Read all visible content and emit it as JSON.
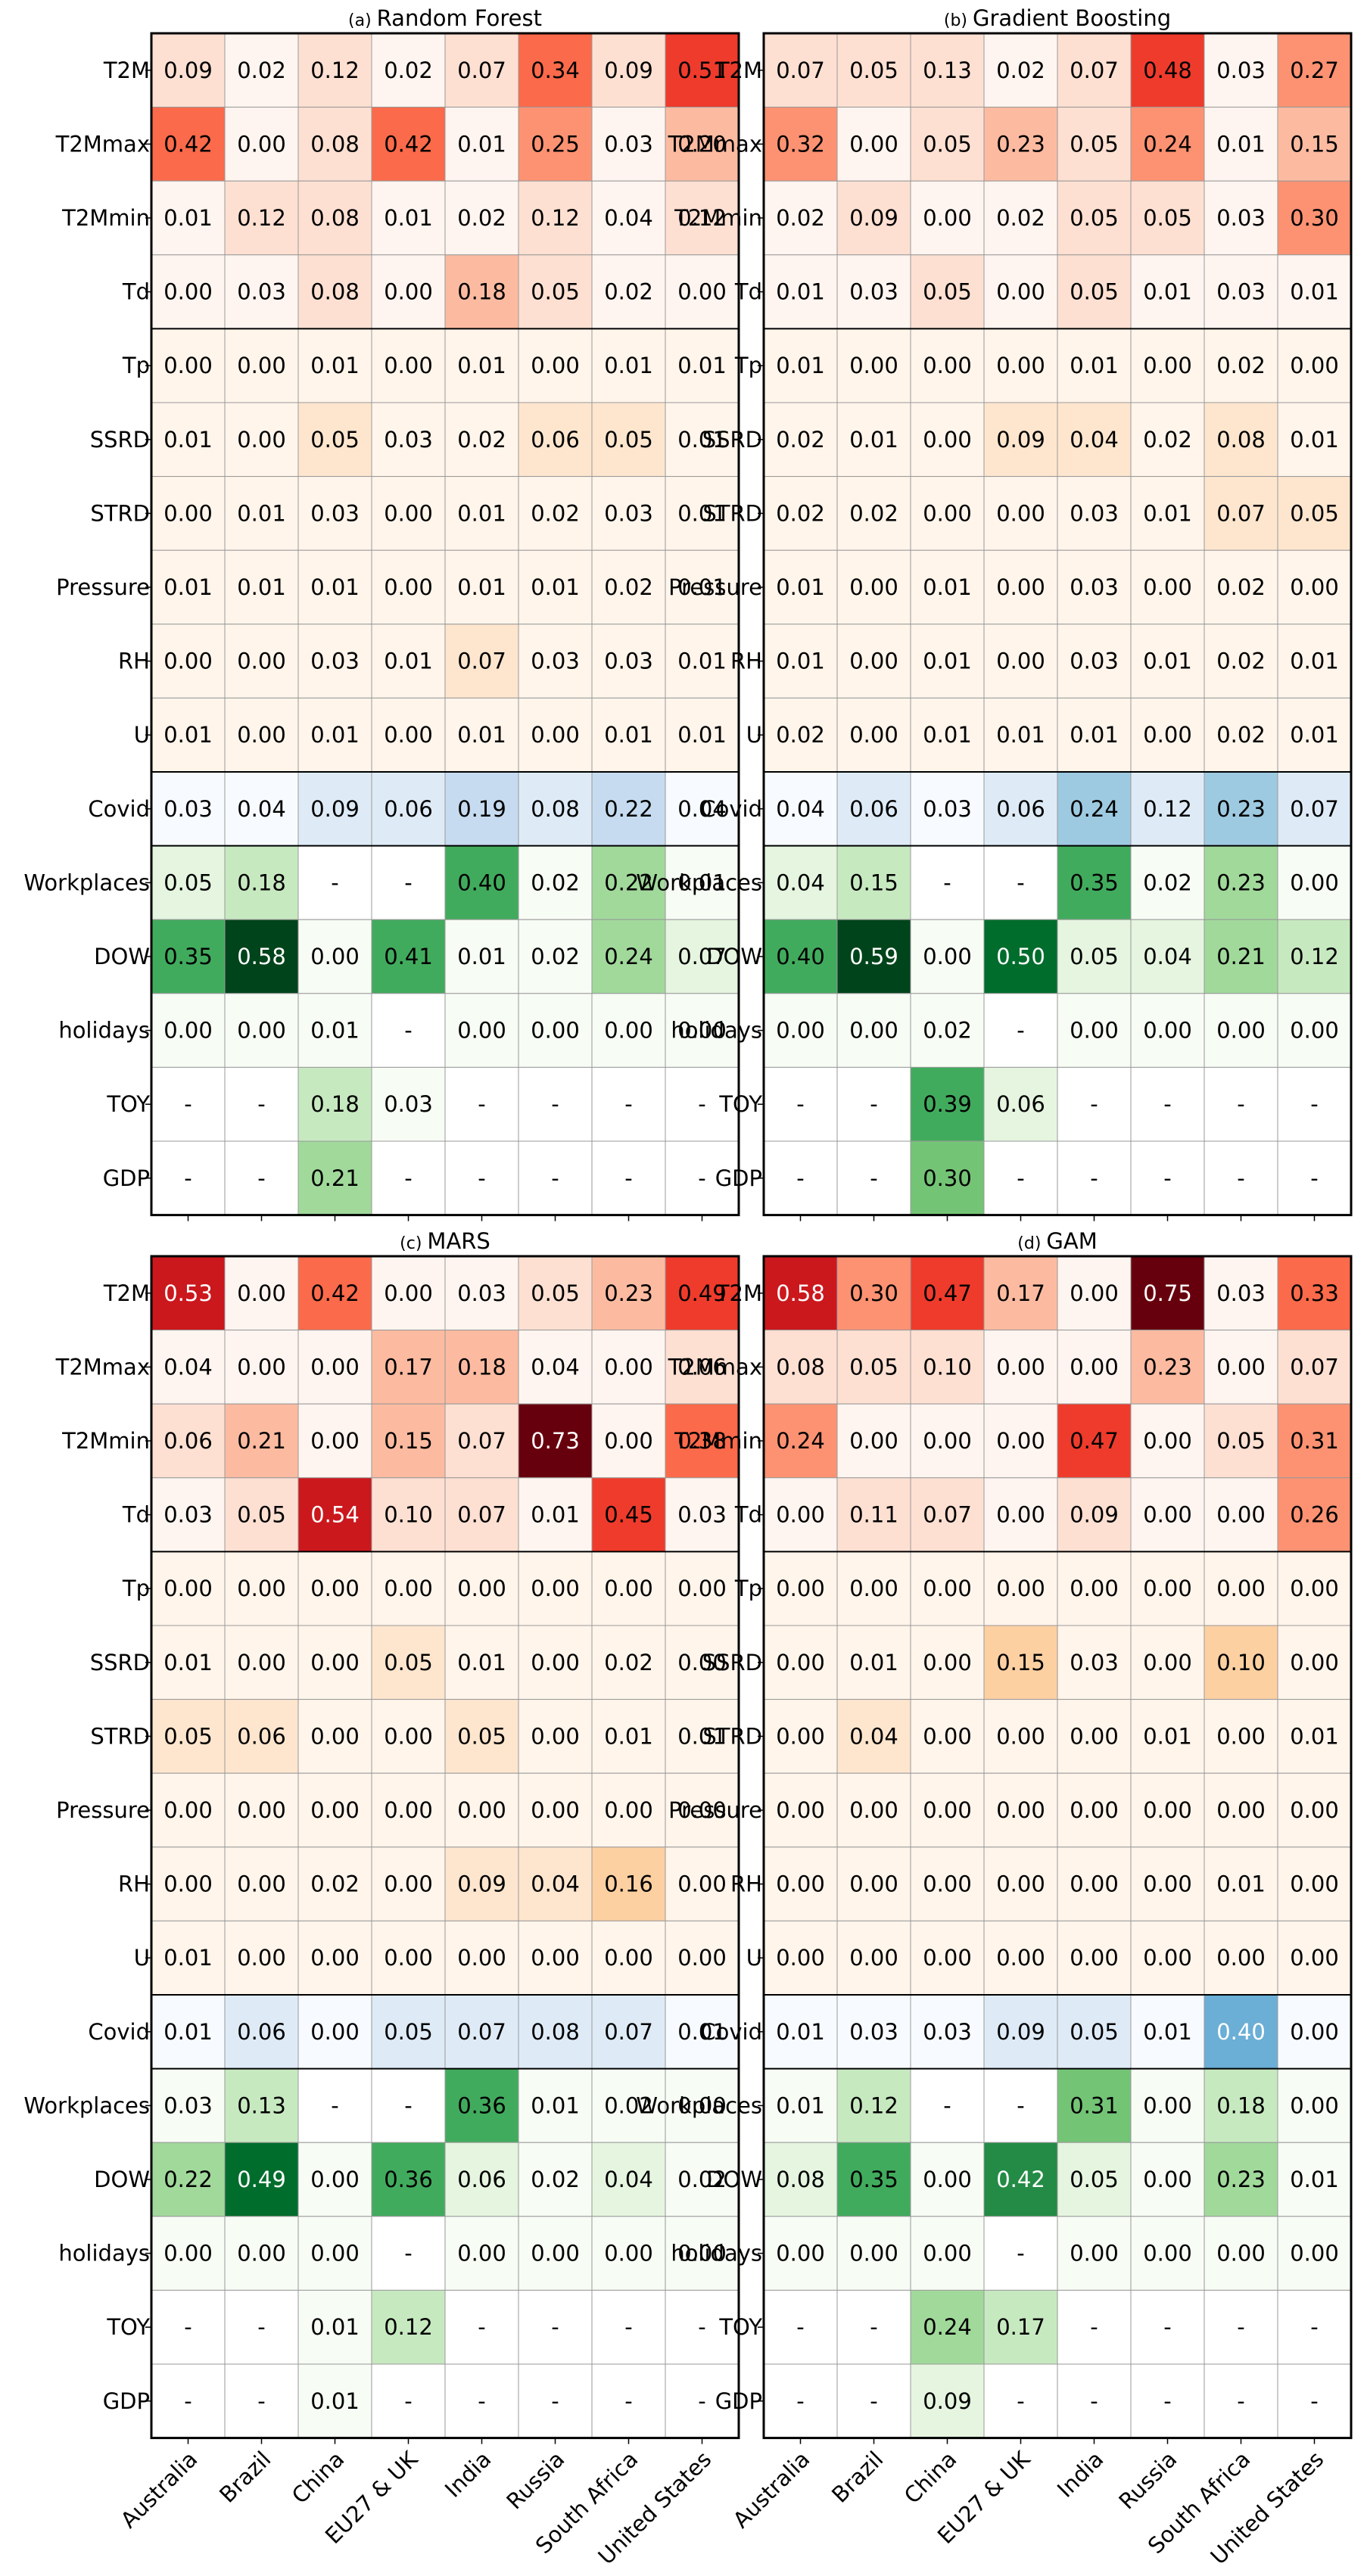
{
  "chart_data": [
    {
      "type": "heatmap",
      "panel_label": "(a)",
      "title": "Random Forest",
      "rows": [
        "T2M",
        "T2Mmax",
        "T2Mmin",
        "Td",
        "Tp",
        "SSRD",
        "STRD",
        "Pressure",
        "RH",
        "U",
        "Covid",
        "Workplaces",
        "DOW",
        "holidays",
        "TOY",
        "GDP"
      ],
      "columns": [
        "Australia",
        "Brazil",
        "China",
        "EU27 & UK",
        "India",
        "Russia",
        "South Africa",
        "United States"
      ],
      "values": [
        [
          "0.09",
          "0.02",
          "0.12",
          "0.02",
          "0.07",
          "0.34",
          "0.09",
          "0.51"
        ],
        [
          "0.42",
          "0.00",
          "0.08",
          "0.42",
          "0.01",
          "0.25",
          "0.03",
          "0.20"
        ],
        [
          "0.01",
          "0.12",
          "0.08",
          "0.01",
          "0.02",
          "0.12",
          "0.04",
          "0.12"
        ],
        [
          "0.00",
          "0.03",
          "0.08",
          "0.00",
          "0.18",
          "0.05",
          "0.02",
          "0.00"
        ],
        [
          "0.00",
          "0.00",
          "0.01",
          "0.00",
          "0.01",
          "0.00",
          "0.01",
          "0.01"
        ],
        [
          "0.01",
          "0.00",
          "0.05",
          "0.03",
          "0.02",
          "0.06",
          "0.05",
          "0.01"
        ],
        [
          "0.00",
          "0.01",
          "0.03",
          "0.00",
          "0.01",
          "0.02",
          "0.03",
          "0.01"
        ],
        [
          "0.01",
          "0.01",
          "0.01",
          "0.00",
          "0.01",
          "0.01",
          "0.02",
          "0.01"
        ],
        [
          "0.00",
          "0.00",
          "0.03",
          "0.01",
          "0.07",
          "0.03",
          "0.03",
          "0.01"
        ],
        [
          "0.01",
          "0.00",
          "0.01",
          "0.00",
          "0.01",
          "0.00",
          "0.01",
          "0.01"
        ],
        [
          "0.03",
          "0.04",
          "0.09",
          "0.06",
          "0.19",
          "0.08",
          "0.22",
          "0.04"
        ],
        [
          "0.05",
          "0.18",
          "-",
          "-",
          "0.40",
          "0.02",
          "0.22",
          "0.01"
        ],
        [
          "0.35",
          "0.58",
          "0.00",
          "0.41",
          "0.01",
          "0.02",
          "0.24",
          "0.07"
        ],
        [
          "0.00",
          "0.00",
          "0.01",
          "-",
          "0.00",
          "0.00",
          "0.00",
          "0.00"
        ],
        [
          "-",
          "-",
          "0.18",
          "0.03",
          "-",
          "-",
          "-",
          "-"
        ],
        [
          "-",
          "-",
          "0.21",
          "-",
          "-",
          "-",
          "-",
          "-"
        ]
      ]
    },
    {
      "type": "heatmap",
      "panel_label": "(b)",
      "title": "Gradient Boosting",
      "rows": [
        "T2M",
        "T2Mmax",
        "T2Mmin",
        "Td",
        "Tp",
        "SSRD",
        "STRD",
        "Pressure",
        "RH",
        "U",
        "Covid",
        "Workplaces",
        "DOW",
        "holidays",
        "TOY",
        "GDP"
      ],
      "columns": [
        "Australia",
        "Brazil",
        "China",
        "EU27 & UK",
        "India",
        "Russia",
        "South Africa",
        "United States"
      ],
      "values": [
        [
          "0.07",
          "0.05",
          "0.13",
          "0.02",
          "0.07",
          "0.48",
          "0.03",
          "0.27"
        ],
        [
          "0.32",
          "0.00",
          "0.05",
          "0.23",
          "0.05",
          "0.24",
          "0.01",
          "0.15"
        ],
        [
          "0.02",
          "0.09",
          "0.00",
          "0.02",
          "0.05",
          "0.05",
          "0.03",
          "0.30"
        ],
        [
          "0.01",
          "0.03",
          "0.05",
          "0.00",
          "0.05",
          "0.01",
          "0.03",
          "0.01"
        ],
        [
          "0.01",
          "0.00",
          "0.00",
          "0.00",
          "0.01",
          "0.00",
          "0.02",
          "0.00"
        ],
        [
          "0.02",
          "0.01",
          "0.00",
          "0.09",
          "0.04",
          "0.02",
          "0.08",
          "0.01"
        ],
        [
          "0.02",
          "0.02",
          "0.00",
          "0.00",
          "0.03",
          "0.01",
          "0.07",
          "0.05"
        ],
        [
          "0.01",
          "0.00",
          "0.01",
          "0.00",
          "0.03",
          "0.00",
          "0.02",
          "0.00"
        ],
        [
          "0.01",
          "0.00",
          "0.01",
          "0.00",
          "0.03",
          "0.01",
          "0.02",
          "0.01"
        ],
        [
          "0.02",
          "0.00",
          "0.01",
          "0.01",
          "0.01",
          "0.00",
          "0.02",
          "0.01"
        ],
        [
          "0.04",
          "0.06",
          "0.03",
          "0.06",
          "0.24",
          "0.12",
          "0.23",
          "0.07"
        ],
        [
          "0.04",
          "0.15",
          "-",
          "-",
          "0.35",
          "0.02",
          "0.23",
          "0.00"
        ],
        [
          "0.40",
          "0.59",
          "0.00",
          "0.50",
          "0.05",
          "0.04",
          "0.21",
          "0.12"
        ],
        [
          "0.00",
          "0.00",
          "0.02",
          "-",
          "0.00",
          "0.00",
          "0.00",
          "0.00"
        ],
        [
          "-",
          "-",
          "0.39",
          "0.06",
          "-",
          "-",
          "-",
          "-"
        ],
        [
          "-",
          "-",
          "0.30",
          "-",
          "-",
          "-",
          "-",
          "-"
        ]
      ]
    },
    {
      "type": "heatmap",
      "panel_label": "(c)",
      "title": "MARS",
      "rows": [
        "T2M",
        "T2Mmax",
        "T2Mmin",
        "Td",
        "Tp",
        "SSRD",
        "STRD",
        "Pressure",
        "RH",
        "U",
        "Covid",
        "Workplaces",
        "DOW",
        "holidays",
        "TOY",
        "GDP"
      ],
      "columns": [
        "Australia",
        "Brazil",
        "China",
        "EU27 & UK",
        "India",
        "Russia",
        "South Africa",
        "United States"
      ],
      "values": [
        [
          "0.53",
          "0.00",
          "0.42",
          "0.00",
          "0.03",
          "0.05",
          "0.23",
          "0.49"
        ],
        [
          "0.04",
          "0.00",
          "0.00",
          "0.17",
          "0.18",
          "0.04",
          "0.00",
          "0.06"
        ],
        [
          "0.06",
          "0.21",
          "0.00",
          "0.15",
          "0.07",
          "0.73",
          "0.00",
          "0.38"
        ],
        [
          "0.03",
          "0.05",
          "0.54",
          "0.10",
          "0.07",
          "0.01",
          "0.45",
          "0.03"
        ],
        [
          "0.00",
          "0.00",
          "0.00",
          "0.00",
          "0.00",
          "0.00",
          "0.00",
          "0.00"
        ],
        [
          "0.01",
          "0.00",
          "0.00",
          "0.05",
          "0.01",
          "0.00",
          "0.02",
          "0.00"
        ],
        [
          "0.05",
          "0.06",
          "0.00",
          "0.00",
          "0.05",
          "0.00",
          "0.01",
          "0.01"
        ],
        [
          "0.00",
          "0.00",
          "0.00",
          "0.00",
          "0.00",
          "0.00",
          "0.00",
          "0.00"
        ],
        [
          "0.00",
          "0.00",
          "0.02",
          "0.00",
          "0.09",
          "0.04",
          "0.16",
          "0.00"
        ],
        [
          "0.01",
          "0.00",
          "0.00",
          "0.00",
          "0.00",
          "0.00",
          "0.00",
          "0.00"
        ],
        [
          "0.01",
          "0.06",
          "0.00",
          "0.05",
          "0.07",
          "0.08",
          "0.07",
          "0.01"
        ],
        [
          "0.03",
          "0.13",
          "-",
          "-",
          "0.36",
          "0.01",
          "0.02",
          "0.00"
        ],
        [
          "0.22",
          "0.49",
          "0.00",
          "0.36",
          "0.06",
          "0.02",
          "0.04",
          "0.02"
        ],
        [
          "0.00",
          "0.00",
          "0.00",
          "-",
          "0.00",
          "0.00",
          "0.00",
          "0.00"
        ],
        [
          "-",
          "-",
          "0.01",
          "0.12",
          "-",
          "-",
          "-",
          "-"
        ],
        [
          "-",
          "-",
          "0.01",
          "-",
          "-",
          "-",
          "-",
          "-"
        ]
      ]
    },
    {
      "type": "heatmap",
      "panel_label": "(d)",
      "title": "GAM",
      "rows": [
        "T2M",
        "T2Mmax",
        "T2Mmin",
        "Td",
        "Tp",
        "SSRD",
        "STRD",
        "Pressure",
        "RH",
        "U",
        "Covid",
        "Workplaces",
        "DOW",
        "holidays",
        "TOY",
        "GDP"
      ],
      "columns": [
        "Australia",
        "Brazil",
        "China",
        "EU27 & UK",
        "India",
        "Russia",
        "South Africa",
        "United States"
      ],
      "values": [
        [
          "0.58",
          "0.30",
          "0.47",
          "0.17",
          "0.00",
          "0.75",
          "0.03",
          "0.33"
        ],
        [
          "0.08",
          "0.05",
          "0.10",
          "0.00",
          "0.00",
          "0.23",
          "0.00",
          "0.07"
        ],
        [
          "0.24",
          "0.00",
          "0.00",
          "0.00",
          "0.47",
          "0.00",
          "0.05",
          "0.31"
        ],
        [
          "0.00",
          "0.11",
          "0.07",
          "0.00",
          "0.09",
          "0.00",
          "0.00",
          "0.26"
        ],
        [
          "0.00",
          "0.00",
          "0.00",
          "0.00",
          "0.00",
          "0.00",
          "0.00",
          "0.00"
        ],
        [
          "0.00",
          "0.01",
          "0.00",
          "0.15",
          "0.03",
          "0.00",
          "0.10",
          "0.00"
        ],
        [
          "0.00",
          "0.04",
          "0.00",
          "0.00",
          "0.00",
          "0.01",
          "0.00",
          "0.01"
        ],
        [
          "0.00",
          "0.00",
          "0.00",
          "0.00",
          "0.00",
          "0.00",
          "0.00",
          "0.00"
        ],
        [
          "0.00",
          "0.00",
          "0.00",
          "0.00",
          "0.00",
          "0.00",
          "0.01",
          "0.00"
        ],
        [
          "0.00",
          "0.00",
          "0.00",
          "0.00",
          "0.00",
          "0.00",
          "0.00",
          "0.00"
        ],
        [
          "0.01",
          "0.03",
          "0.03",
          "0.09",
          "0.05",
          "0.01",
          "0.40",
          "0.00"
        ],
        [
          "0.01",
          "0.12",
          "-",
          "-",
          "0.31",
          "0.00",
          "0.18",
          "0.00"
        ],
        [
          "0.08",
          "0.35",
          "0.00",
          "0.42",
          "0.05",
          "0.00",
          "0.23",
          "0.01"
        ],
        [
          "0.00",
          "0.00",
          "0.00",
          "-",
          "0.00",
          "0.00",
          "0.00",
          "0.00"
        ],
        [
          "-",
          "-",
          "0.24",
          "0.17",
          "-",
          "-",
          "-",
          "-"
        ],
        [
          "-",
          "-",
          "0.09",
          "-",
          "-",
          "-",
          "-",
          "-"
        ]
      ]
    }
  ],
  "colors": {
    "weather_scale": [
      "#fff5f0",
      "#fee0d2",
      "#fcbba1",
      "#fc9272",
      "#fb6a4a",
      "#ef3b2c",
      "#cb181d",
      "#a50f15",
      "#67000d"
    ],
    "pressure_scale": [
      "#fff5eb",
      "#fee6ce",
      "#fdd0a2",
      "#fdae6b"
    ],
    "covid_scale": [
      "#f7fbff",
      "#deebf7",
      "#c6dbef",
      "#9ecae1",
      "#6baed6",
      "#4292c6"
    ],
    "human_scale": [
      "#f7fcf5",
      "#e5f5e0",
      "#c7e9c0",
      "#a1d99b",
      "#74c476",
      "#41ab5d",
      "#238b45",
      "#006d2c",
      "#00441b"
    ],
    "grid_line": "#999999",
    "frame": "#000000"
  },
  "row_groups": {
    "weather_rows": [
      "T2M",
      "T2Mmax",
      "T2Mmin",
      "Td"
    ],
    "moisture_radiation_rows": [
      "Tp",
      "SSRD",
      "STRD",
      "Pressure",
      "RH",
      "U"
    ],
    "covid_rows": [
      "Covid"
    ],
    "human_rows": [
      "Workplaces",
      "DOW",
      "holidays",
      "TOY",
      "GDP"
    ]
  }
}
